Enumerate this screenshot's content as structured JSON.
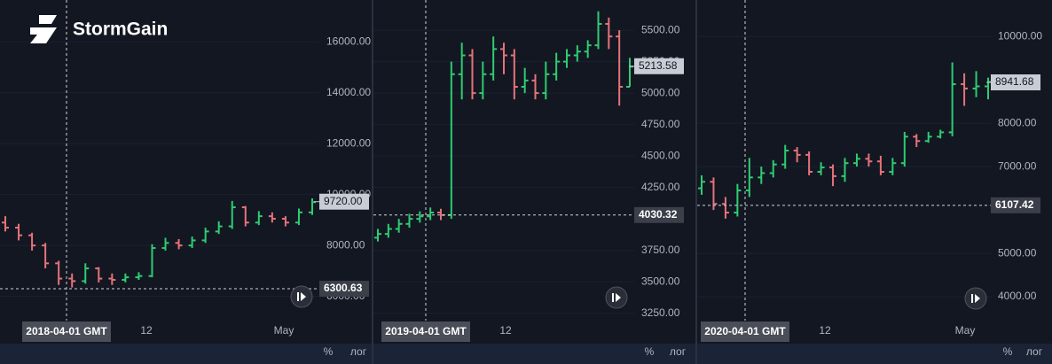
{
  "brand": "StormGain",
  "scale_buttons": [
    "%",
    "лог"
  ],
  "chart_data": [
    {
      "type": "ohlc",
      "ylim": [
        4180,
        17640
      ],
      "yticks": [
        {
          "value": 16000,
          "label": "16000.00"
        },
        {
          "value": 14000,
          "label": "14000.00"
        },
        {
          "value": 12000,
          "label": "12000.00"
        },
        {
          "value": 10000,
          "label": "10000.00"
        },
        {
          "value": 8000,
          "label": "8000.00"
        },
        {
          "value": 6000,
          "label": "6000.00"
        }
      ],
      "grid": true,
      "up_color": "#2ecc71",
      "down_color": "#e5737a",
      "open": [
        8900,
        8700,
        8400,
        8000,
        7300,
        6700,
        6600,
        7100,
        6700,
        6650,
        6750,
        6800,
        7900,
        8100,
        8000,
        8200,
        8550,
        8750,
        9500,
        8900,
        9150,
        9050,
        8900,
        9300
      ],
      "high": [
        9150,
        8850,
        8500,
        8100,
        7400,
        6900,
        7300,
        7150,
        6900,
        6900,
        6950,
        8050,
        8300,
        8250,
        8350,
        8700,
        8950,
        9750,
        9550,
        9350,
        9300,
        9150,
        9450,
        9850
      ],
      "low": [
        8550,
        8200,
        7800,
        7100,
        6450,
        6350,
        6500,
        6550,
        6450,
        6550,
        6650,
        6750,
        7800,
        7850,
        7900,
        8100,
        8450,
        8650,
        8750,
        8800,
        8900,
        8750,
        8800,
        9200
      ],
      "close": [
        8700,
        8400,
        8000,
        7300,
        6700,
        6600,
        7100,
        6700,
        6650,
        6750,
        6800,
        7900,
        8100,
        8000,
        8200,
        8550,
        8750,
        9500,
        8900,
        9150,
        9050,
        8900,
        9300,
        9700
      ],
      "last_price": {
        "value": 9720,
        "label": "9720.00"
      },
      "crosshair_price": 6300.63,
      "crosshair_date": "2018-04-01 GMT",
      "x_tick_labels": [
        "12",
        "May"
      ]
    },
    {
      "type": "ohlc",
      "ylim": [
        3015,
        5740
      ],
      "yticks": [
        {
          "value": 5500,
          "label": "5500.00"
        },
        {
          "value": 5250,
          "label": "5250.00"
        },
        {
          "value": 5000,
          "label": "5000.00"
        },
        {
          "value": 4750,
          "label": "4750.00"
        },
        {
          "value": 4500,
          "label": "4500.00"
        },
        {
          "value": 4250,
          "label": "4250.00"
        },
        {
          "value": 3750,
          "label": "3750.00"
        },
        {
          "value": 3500,
          "label": "3500.00"
        },
        {
          "value": 3250,
          "label": "3250.00"
        }
      ],
      "grid": true,
      "up_color": "#2ecc71",
      "down_color": "#e5737a",
      "open": [
        3850,
        3880,
        3920,
        3960,
        4000,
        4020,
        4050,
        4030,
        5150,
        5300,
        5000,
        5150,
        5350,
        5300,
        5050,
        5100,
        5000,
        5150,
        5250,
        5300,
        5330,
        5380,
        5550,
        5450,
        5050
      ],
      "high": [
        3920,
        3960,
        4000,
        4040,
        4060,
        4090,
        4080,
        5250,
        5400,
        5350,
        5250,
        5450,
        5400,
        5350,
        5200,
        5150,
        5250,
        5320,
        5350,
        5380,
        5420,
        5650,
        5600,
        5500,
        5280
      ],
      "low": [
        3820,
        3850,
        3890,
        3930,
        3970,
        3990,
        3990,
        4000,
        4950,
        4950,
        4950,
        5100,
        5150,
        4950,
        5000,
        4950,
        4950,
        5100,
        5200,
        5250,
        5280,
        5350,
        5350,
        4900,
        5050
      ],
      "close": [
        3880,
        3920,
        3960,
        4000,
        4020,
        4050,
        4030,
        5150,
        5300,
        5000,
        5150,
        5350,
        5300,
        5050,
        5100,
        5000,
        5150,
        5250,
        5300,
        5330,
        5380,
        5550,
        5450,
        5050,
        5210
      ],
      "last_price": 5213.58,
      "crosshair_price": 4030.32,
      "crosshair_date": "2019-04-01 GMT",
      "x_tick_labels": [
        "12"
      ]
    },
    {
      "type": "ohlc",
      "ylim": [
        2940,
        10840
      ],
      "yticks": [
        {
          "value": 10000,
          "label": "10000.00"
        },
        {
          "value": 8000,
          "label": "8000.00"
        },
        {
          "value": 7000,
          "label": "7000.00"
        },
        {
          "value": 5000,
          "label": "5000.00"
        },
        {
          "value": 4000,
          "label": "4000.00"
        }
      ],
      "grid": true,
      "up_color": "#2ecc71",
      "down_color": "#e5737a",
      "open": [
        6500,
        6650,
        6140,
        5940,
        6450,
        6750,
        6850,
        7050,
        7370,
        7270,
        6880,
        6980,
        6780,
        7080,
        7180,
        7120,
        6880,
        7080,
        7690,
        7590,
        7690,
        7790,
        8900,
        8800,
        8850
      ],
      "high": [
        6800,
        6750,
        6300,
        6600,
        7200,
        7000,
        7150,
        7500,
        7450,
        7350,
        7100,
        7050,
        7200,
        7300,
        7300,
        7250,
        7200,
        7800,
        7750,
        7800,
        7850,
        9400,
        9150,
        9200,
        9050
      ],
      "low": [
        6350,
        6000,
        5800,
        5850,
        6300,
        6600,
        6750,
        6950,
        7100,
        6800,
        6800,
        6550,
        6650,
        7000,
        7000,
        6800,
        6800,
        7000,
        7450,
        7550,
        7650,
        7700,
        8400,
        8600,
        8550
      ],
      "close": [
        6650,
        6140,
        5940,
        6450,
        6750,
        6850,
        7050,
        7370,
        7270,
        6880,
        6980,
        6780,
        7080,
        7180,
        7120,
        6880,
        7080,
        7690,
        7590,
        7690,
        7790,
        8900,
        8800,
        8850,
        8950
      ],
      "last_price": 8941.68,
      "crosshair_price": 6107.42,
      "crosshair_date": "2020-04-01 GMT",
      "x_tick_labels": [
        "12",
        "May"
      ]
    }
  ]
}
